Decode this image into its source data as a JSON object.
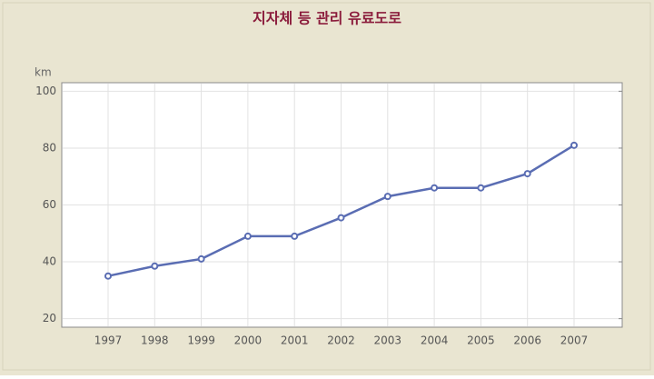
{
  "chart_data": {
    "type": "line",
    "title": "지자체 등 관리 유료도로",
    "y_label": "km",
    "categories": [
      "1997",
      "1998",
      "1999",
      "2000",
      "2001",
      "2002",
      "2003",
      "2004",
      "2005",
      "2006",
      "2007"
    ],
    "values": [
      35,
      38.5,
      41,
      49,
      49,
      55.5,
      63,
      66,
      66,
      71,
      81
    ],
    "color": "#5a6db3",
    "ylim": [
      17,
      103
    ],
    "yticks": [
      20,
      40,
      60,
      80,
      100
    ],
    "grid": true
  }
}
